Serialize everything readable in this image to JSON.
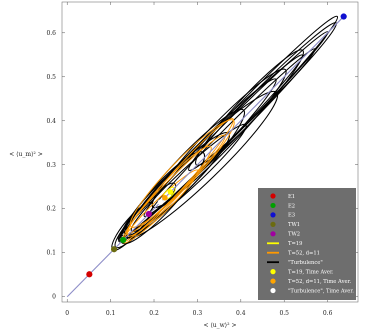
{
  "chart_data": {
    "type": "scatter",
    "title": "",
    "xlabel": "< ⟨u_w⟩² >",
    "ylabel": "< ⟨u_m⟩² >",
    "xlim": [
      -0.012,
      0.67
    ],
    "ylim": [
      -0.012,
      0.67
    ],
    "x_ticks": [
      0,
      0.1,
      0.2,
      0.3,
      0.4,
      0.5,
      0.6
    ],
    "y_ticks": [
      0,
      0.1,
      0.2,
      0.3,
      0.4,
      0.5,
      0.6
    ],
    "grid": false,
    "legend_position": "bottom-right",
    "diagonal": {
      "from": [
        0,
        0
      ],
      "to": [
        0.64,
        0.64
      ],
      "color": "#8e8ec8"
    },
    "points": [
      {
        "name": "E1",
        "x": 0.051,
        "y": 0.051,
        "color": "#d40000"
      },
      {
        "name": "E2",
        "x": 0.129,
        "y": 0.129,
        "color": "#00a000"
      },
      {
        "name": "E3",
        "x": 0.637,
        "y": 0.637,
        "color": "#1010d0"
      },
      {
        "name": "TW1",
        "x": 0.108,
        "y": 0.108,
        "color": "#6b6b10"
      },
      {
        "name": "TW2",
        "x": 0.188,
        "y": 0.188,
        "color": "#a000a0"
      }
    ],
    "averages": [
      {
        "name": "T=19, Time Aver.",
        "x": 0.238,
        "y": 0.238,
        "color": "#ffff00"
      },
      {
        "name": "T=52, d=11, Time Aver.",
        "x": 0.225,
        "y": 0.225,
        "color": "#ffa500"
      },
      {
        "name": "\"Turbulence\", Time Aver.",
        "x": 0.215,
        "y": 0.215,
        "color": "#ffffff"
      }
    ],
    "series": [
      {
        "name": "T=19",
        "color": "#ffff00",
        "loops": [
          {
            "cx": 0.235,
            "cy": 0.235,
            "a": 0.018,
            "b": 0.008,
            "angle": 45
          }
        ]
      },
      {
        "name": "T=52, d=11",
        "color": "#ff9900",
        "loops": [
          {
            "cx": 0.235,
            "cy": 0.24,
            "a": 0.14,
            "b": 0.022,
            "angle": 47
          },
          {
            "cx": 0.25,
            "cy": 0.255,
            "a": 0.16,
            "b": 0.018,
            "angle": 45
          },
          {
            "cx": 0.255,
            "cy": 0.265,
            "a": 0.19,
            "b": 0.02,
            "angle": 48
          },
          {
            "cx": 0.215,
            "cy": 0.205,
            "a": 0.12,
            "b": 0.016,
            "angle": 44
          },
          {
            "cx": 0.265,
            "cy": 0.28,
            "a": 0.17,
            "b": 0.028,
            "angle": 46
          }
        ]
      },
      {
        "name": "\"Turbulence\"",
        "color": "#000000",
        "loops": [
          {
            "cx": 0.3,
            "cy": 0.31,
            "a": 0.26,
            "b": 0.024,
            "angle": 46
          },
          {
            "cx": 0.33,
            "cy": 0.34,
            "a": 0.3,
            "b": 0.02,
            "angle": 45
          },
          {
            "cx": 0.27,
            "cy": 0.28,
            "a": 0.2,
            "b": 0.032,
            "angle": 47
          },
          {
            "cx": 0.36,
            "cy": 0.365,
            "a": 0.34,
            "b": 0.018,
            "angle": 45
          },
          {
            "cx": 0.25,
            "cy": 0.255,
            "a": 0.17,
            "b": 0.028,
            "angle": 44
          },
          {
            "cx": 0.4,
            "cy": 0.41,
            "a": 0.32,
            "b": 0.022,
            "angle": 46
          },
          {
            "cx": 0.22,
            "cy": 0.225,
            "a": 0.14,
            "b": 0.03,
            "angle": 48
          },
          {
            "cx": 0.31,
            "cy": 0.3,
            "a": 0.24,
            "b": 0.038,
            "angle": 44
          },
          {
            "cx": 0.45,
            "cy": 0.455,
            "a": 0.24,
            "b": 0.02,
            "angle": 45
          },
          {
            "cx": 0.18,
            "cy": 0.185,
            "a": 0.1,
            "b": 0.02,
            "angle": 47
          },
          {
            "cx": 0.35,
            "cy": 0.36,
            "a": 0.22,
            "b": 0.03,
            "angle": 46
          },
          {
            "cx": 0.28,
            "cy": 0.27,
            "a": 0.18,
            "b": 0.022,
            "angle": 43
          },
          {
            "cx": 0.42,
            "cy": 0.43,
            "a": 0.18,
            "b": 0.026,
            "angle": 47
          },
          {
            "cx": 0.15,
            "cy": 0.16,
            "a": 0.07,
            "b": 0.018,
            "angle": 50
          },
          {
            "cx": 0.38,
            "cy": 0.375,
            "a": 0.27,
            "b": 0.016,
            "angle": 45
          }
        ]
      }
    ],
    "legend": {
      "background": "#6e6e6e",
      "entries": [
        {
          "label": "E1",
          "kind": "dot",
          "color": "#d40000"
        },
        {
          "label": "E2",
          "kind": "dot",
          "color": "#00a000"
        },
        {
          "label": "E3",
          "kind": "dot",
          "color": "#1010d0"
        },
        {
          "label": "TW1",
          "kind": "dot",
          "color": "#6b6b10"
        },
        {
          "label": "TW2",
          "kind": "dot",
          "color": "#a000a0"
        },
        {
          "label": "T=19",
          "kind": "line",
          "color": "#ffff00"
        },
        {
          "label": "T=52, d=11",
          "kind": "line",
          "color": "#ff9900"
        },
        {
          "label": "\"Turbulence\"",
          "kind": "line",
          "color": "#000000"
        },
        {
          "label": "T=19, Time Aver.",
          "kind": "dot",
          "color": "#ffff00"
        },
        {
          "label": "T=52, d=11, Time Aver.",
          "kind": "dot",
          "color": "#ffa500"
        },
        {
          "label": "\"Turbulence\", Time Aver.",
          "kind": "dot",
          "color": "#ffffff"
        }
      ]
    }
  }
}
